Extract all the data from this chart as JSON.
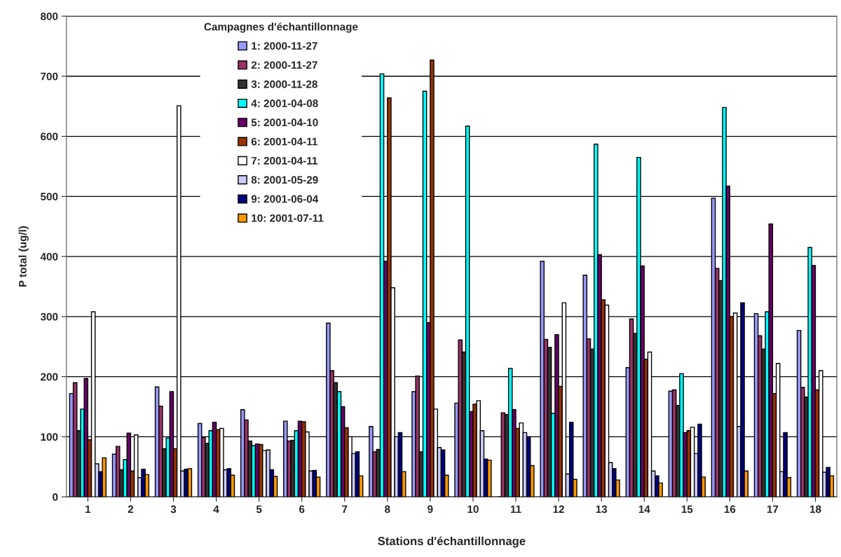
{
  "chart_data": {
    "type": "bar",
    "xlabel": "Stations d'échantillonnage",
    "ylabel": "P total (ug/l)",
    "legend_title": "Campagnes d'échantillonnage",
    "categories": [
      "1",
      "2",
      "3",
      "4",
      "5",
      "6",
      "7",
      "8",
      "9",
      "10",
      "11",
      "12",
      "13",
      "14",
      "15",
      "16",
      "17",
      "18"
    ],
    "ylim": [
      0,
      800
    ],
    "yticks": [
      0,
      100,
      200,
      300,
      400,
      500,
      600,
      700,
      800
    ],
    "grid": "y",
    "legend": "top left",
    "series": [
      {
        "name": "1: 2000-11-27",
        "color": "#9999ff",
        "values": [
          172,
          71,
          183,
          122,
          145,
          126,
          289,
          117,
          175,
          156,
          null,
          392,
          369,
          215,
          176,
          497,
          305,
          277
        ]
      },
      {
        "name": "2: 2000-11-27",
        "color": "#993366",
        "values": [
          190,
          84,
          151,
          99,
          128,
          93,
          210,
          75,
          201,
          261,
          140,
          262,
          263,
          296,
          178,
          380,
          268,
          182
        ]
      },
      {
        "name": "3: 2000-11-28",
        "color": "#333333",
        "values": [
          110,
          45,
          80,
          89,
          93,
          94,
          190,
          79,
          75,
          241,
          137,
          249,
          246,
          272,
          152,
          360,
          246,
          166
        ]
      },
      {
        "name": "4: 2001-04-08",
        "color": "#00ffff",
        "values": [
          146,
          62,
          98,
          110,
          85,
          110,
          175,
          704,
          675,
          617,
          214,
          139,
          587,
          565,
          205,
          648,
          308,
          415
        ]
      },
      {
        "name": "5: 2001-04-10",
        "color": "#660066",
        "values": [
          197,
          106,
          175,
          124,
          88,
          126,
          150,
          392,
          290,
          142,
          145,
          270,
          403,
          384,
          107,
          517,
          454,
          385
        ]
      },
      {
        "name": "6: 2001-04-11",
        "color": "#993300",
        "values": [
          95,
          43,
          80,
          112,
          87,
          125,
          115,
          664,
          727,
          154,
          114,
          184,
          328,
          229,
          110,
          300,
          172,
          178
        ]
      },
      {
        "name": "7: 2001-04-11",
        "color": "#ffffff",
        "values": [
          308,
          103,
          651,
          114,
          77,
          108,
          100,
          348,
          146,
          160,
          123,
          323,
          319,
          241,
          116,
          306,
          222,
          210
        ]
      },
      {
        "name": "8: 2001-05-29",
        "color": "#ccccff",
        "values": [
          55,
          32,
          43,
          45,
          78,
          43,
          72,
          100,
          82,
          110,
          107,
          38,
          57,
          43,
          72,
          117,
          42,
          41
        ]
      },
      {
        "name": "9: 2001-06-04",
        "color": "#000080",
        "values": [
          42,
          46,
          46,
          47,
          45,
          44,
          75,
          107,
          78,
          63,
          100,
          124,
          47,
          35,
          121,
          323,
          107,
          49
        ]
      },
      {
        "name": "10: 2001-07-11",
        "color": "#ff9900",
        "values": [
          65,
          37,
          47,
          36,
          34,
          33,
          35,
          42,
          36,
          61,
          52,
          29,
          28,
          23,
          33,
          43,
          32,
          35
        ]
      }
    ]
  }
}
